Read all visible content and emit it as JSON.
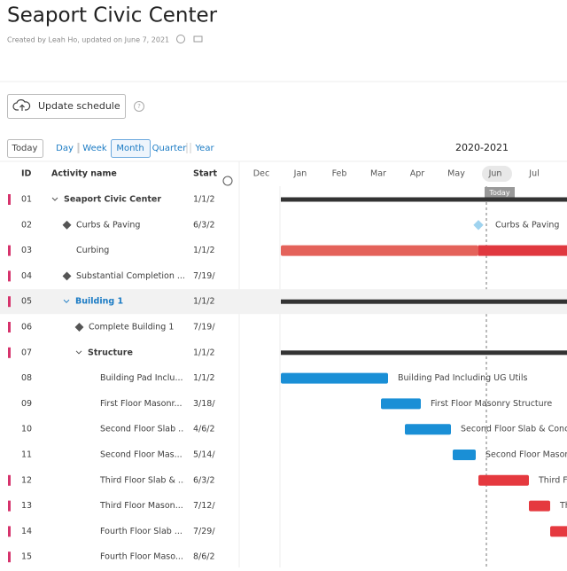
{
  "header": {
    "title": "Seaport Civic Center",
    "subtitle": "Created by Leah Ho, updated on June 7, 2021"
  },
  "toolbar": {
    "update_button": "Update schedule",
    "views": [
      "Today",
      "Day",
      "Week",
      "Month",
      "Quarter",
      "Year"
    ],
    "period": "2020-2021"
  },
  "table": {
    "columns": [
      "ID",
      "Activity name",
      "Start"
    ],
    "rows": [
      {
        "id": "01",
        "name": "Seaport Civic Center",
        "start": "1/1/2"
      },
      {
        "id": "02",
        "name": "Curbs & Paving",
        "start": "6/3/2",
        "bar_label": "Curbs & Paving"
      },
      {
        "id": "03",
        "name": "Curbing",
        "start": "1/1/2"
      },
      {
        "id": "04",
        "name": "Substantial Completion ...",
        "start": "7/19/"
      },
      {
        "id": "05",
        "name": "Building 1",
        "start": "1/1/2"
      },
      {
        "id": "06",
        "name": "Complete Building 1",
        "start": "7/19/"
      },
      {
        "id": "07",
        "name": "Structure",
        "start": "1/1/2"
      },
      {
        "id": "08",
        "name": "Building Pad Inclu...",
        "start": "1/1/2",
        "bar_label": "Building Pad Including UG Utils"
      },
      {
        "id": "09",
        "name": "First Floor Masonr...",
        "start": "3/18/",
        "bar_label": "First Floor Masonry Structure"
      },
      {
        "id": "10",
        "name": "Second Floor Slab ...",
        "start": "4/6/2",
        "bar_label": "Second Floor Slab & Conc"
      },
      {
        "id": "11",
        "name": "Second Floor Mas...",
        "start": "5/14/",
        "bar_label": "Second Floor Mason"
      },
      {
        "id": "12",
        "name": "Third Floor Slab & ...",
        "start": "6/3/2",
        "bar_label": "Third F"
      },
      {
        "id": "13",
        "name": "Third Floor Mason...",
        "start": "7/12/",
        "bar_label": "Th"
      },
      {
        "id": "14",
        "name": "Fourth Floor Slab ...",
        "start": "7/29/"
      },
      {
        "id": "15",
        "name": "Fourth Floor Maso...",
        "start": "8/6/2"
      }
    ]
  },
  "timeline": {
    "months": [
      "Dec",
      "Jan",
      "Feb",
      "Mar",
      "Apr",
      "May",
      "Jun",
      "Jul"
    ],
    "today_label": "Today"
  }
}
